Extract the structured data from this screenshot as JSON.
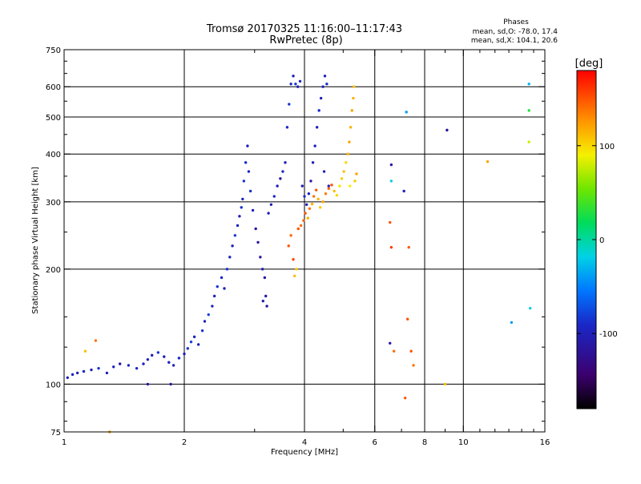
{
  "chart_data": {
    "type": "scatter",
    "title": "Tromsø 20170325 11:16:00–11:17:43",
    "subtitle": "RwPretec (8p)",
    "xlabel": "Frequency [MHz]",
    "ylabel": "Stationary phase Virtual Height [km]",
    "xscale": "log",
    "yscale": "log",
    "xlim": [
      1,
      16
    ],
    "ylim": [
      75,
      750
    ],
    "x_ticks": [
      {
        "value": 1,
        "label": "1"
      },
      {
        "value": 2,
        "label": "2"
      },
      {
        "value": 4,
        "label": "4"
      },
      {
        "value": 6,
        "label": "6"
      },
      {
        "value": 8,
        "label": "8"
      },
      {
        "value": 10,
        "label": "10"
      },
      {
        "value": 16,
        "label": "16"
      }
    ],
    "y_ticks": [
      {
        "value": 75,
        "label": "75"
      },
      {
        "value": 100,
        "label": "100"
      },
      {
        "value": 200,
        "label": "200"
      },
      {
        "value": 300,
        "label": "300"
      },
      {
        "value": 400,
        "label": "400"
      },
      {
        "value": 500,
        "label": "500"
      },
      {
        "value": 600,
        "label": "600"
      },
      {
        "value": 750,
        "label": "750"
      }
    ],
    "x_minor_ticks": [
      3,
      5,
      7,
      9,
      11,
      12,
      13,
      14,
      15
    ],
    "y_minor_ticks": [
      80,
      90,
      125,
      150,
      250,
      350,
      450,
      550,
      650,
      700
    ],
    "grid": true,
    "stats": {
      "heading": "Phases",
      "line1": "mean, sd,O: -78.0, 17.4",
      "line2": "mean, sd,X: 104.1, 20.6"
    },
    "colorbar": {
      "label": "[deg]",
      "range": [
        -180,
        180
      ],
      "ticks": [
        {
          "value": 100,
          "label": "100"
        },
        {
          "value": 0,
          "label": "0"
        },
        {
          "value": -100,
          "label": "-100"
        }
      ]
    },
    "points": [
      [
        1.02,
        104,
        -100
      ],
      [
        1.05,
        106,
        -95
      ],
      [
        1.08,
        107,
        -100
      ],
      [
        1.12,
        108,
        -90
      ],
      [
        1.17,
        109,
        -100
      ],
      [
        1.22,
        110,
        -85
      ],
      [
        1.28,
        107,
        -100
      ],
      [
        1.33,
        111,
        -95
      ],
      [
        1.38,
        113,
        -110
      ],
      [
        1.45,
        112,
        -100
      ],
      [
        1.52,
        110,
        -90
      ],
      [
        1.58,
        113,
        -100
      ],
      [
        1.62,
        116,
        -95
      ],
      [
        1.66,
        119,
        -100
      ],
      [
        1.72,
        121,
        -85
      ],
      [
        1.78,
        118,
        -100
      ],
      [
        1.83,
        114,
        -95
      ],
      [
        1.88,
        112,
        -100
      ],
      [
        1.94,
        117,
        -90
      ],
      [
        2.0,
        120,
        -100
      ],
      [
        2.04,
        124,
        -85
      ],
      [
        2.08,
        129,
        -80
      ],
      [
        2.12,
        133,
        -100
      ],
      [
        2.17,
        127,
        -95
      ],
      [
        2.22,
        138,
        -85
      ],
      [
        2.25,
        146,
        -100
      ],
      [
        2.3,
        152,
        -80
      ],
      [
        2.35,
        160,
        -95
      ],
      [
        2.38,
        170,
        -100
      ],
      [
        2.42,
        180,
        -85
      ],
      [
        2.48,
        190,
        -90
      ],
      [
        2.52,
        178,
        -100
      ],
      [
        2.56,
        200,
        -85
      ],
      [
        2.6,
        215,
        -95
      ],
      [
        2.64,
        230,
        -100
      ],
      [
        2.68,
        245,
        -85
      ],
      [
        2.72,
        260,
        -95
      ],
      [
        2.75,
        275,
        -100
      ],
      [
        2.78,
        290,
        -85
      ],
      [
        2.8,
        305,
        -95
      ],
      [
        2.82,
        340,
        -85
      ],
      [
        2.85,
        380,
        -90
      ],
      [
        2.88,
        420,
        -100
      ],
      [
        2.9,
        360,
        -95
      ],
      [
        2.93,
        320,
        -85
      ],
      [
        2.97,
        285,
        -100
      ],
      [
        3.02,
        255,
        -110
      ],
      [
        3.06,
        235,
        -115
      ],
      [
        3.1,
        215,
        -110
      ],
      [
        3.14,
        200,
        -105
      ],
      [
        3.18,
        190,
        -115
      ],
      [
        3.2,
        170,
        -110
      ],
      [
        3.22,
        160,
        -120
      ],
      [
        3.15,
        165,
        -110
      ],
      [
        3.25,
        280,
        -100
      ],
      [
        3.3,
        295,
        -105
      ],
      [
        3.36,
        310,
        -95
      ],
      [
        3.42,
        330,
        -100
      ],
      [
        3.48,
        345,
        -110
      ],
      [
        3.53,
        360,
        -95
      ],
      [
        3.58,
        380,
        -100
      ],
      [
        3.62,
        470,
        -90
      ],
      [
        3.66,
        540,
        -85
      ],
      [
        3.7,
        610,
        -95
      ],
      [
        3.75,
        640,
        -100
      ],
      [
        3.8,
        610,
        -85
      ],
      [
        3.85,
        600,
        -100
      ],
      [
        3.9,
        620,
        -95
      ],
      [
        3.95,
        330,
        -100
      ],
      [
        4.0,
        310,
        -90
      ],
      [
        4.05,
        295,
        -100
      ],
      [
        4.1,
        315,
        -95
      ],
      [
        4.15,
        340,
        -110
      ],
      [
        4.2,
        380,
        -100
      ],
      [
        4.25,
        420,
        -95
      ],
      [
        4.3,
        470,
        -100
      ],
      [
        4.35,
        520,
        -90
      ],
      [
        4.4,
        560,
        -100
      ],
      [
        4.45,
        600,
        -95
      ],
      [
        4.5,
        640,
        -100
      ],
      [
        4.55,
        610,
        -90
      ],
      [
        4.6,
        330,
        -100
      ],
      [
        4.48,
        360,
        -95
      ],
      [
        3.65,
        230,
        150
      ],
      [
        3.7,
        245,
        145
      ],
      [
        3.75,
        212,
        155
      ],
      [
        3.78,
        192,
        110
      ],
      [
        3.82,
        200,
        105
      ],
      [
        3.86,
        255,
        150
      ],
      [
        3.92,
        260,
        140
      ],
      [
        3.98,
        268,
        145
      ],
      [
        4.02,
        280,
        150
      ],
      [
        4.08,
        272,
        115
      ],
      [
        4.12,
        288,
        140
      ],
      [
        4.18,
        296,
        115
      ],
      [
        4.22,
        310,
        140
      ],
      [
        4.28,
        322,
        150
      ],
      [
        4.33,
        305,
        115
      ],
      [
        4.38,
        290,
        105
      ],
      [
        4.45,
        300,
        120
      ],
      [
        4.52,
        315,
        135
      ],
      [
        4.6,
        325,
        145
      ],
      [
        4.68,
        332,
        150
      ],
      [
        4.75,
        320,
        110
      ],
      [
        4.82,
        312,
        100
      ],
      [
        4.9,
        330,
        95
      ],
      [
        4.96,
        345,
        105
      ],
      [
        5.02,
        360,
        110
      ],
      [
        5.08,
        380,
        100
      ],
      [
        5.14,
        400,
        115
      ],
      [
        5.18,
        430,
        120
      ],
      [
        5.22,
        470,
        115
      ],
      [
        5.26,
        520,
        120
      ],
      [
        5.3,
        560,
        115
      ],
      [
        5.32,
        600,
        110
      ],
      [
        5.2,
        330,
        90
      ],
      [
        5.35,
        340,
        105
      ],
      [
        5.4,
        355,
        120
      ],
      [
        6.6,
        375,
        -110
      ],
      [
        6.6,
        340,
        -20
      ],
      [
        6.55,
        265,
        150
      ],
      [
        6.6,
        228,
        160
      ],
      [
        6.55,
        128,
        -110
      ],
      [
        6.7,
        122,
        140
      ],
      [
        7.1,
        320,
        -100
      ],
      [
        7.2,
        515,
        -40
      ],
      [
        7.3,
        228,
        150
      ],
      [
        7.25,
        148,
        150
      ],
      [
        7.4,
        122,
        150
      ],
      [
        7.5,
        112,
        140
      ],
      [
        7.15,
        92,
        150
      ],
      [
        9.1,
        462,
        -120
      ],
      [
        9.0,
        100,
        110
      ],
      [
        11.5,
        382,
        120
      ],
      [
        13.2,
        145,
        -40
      ],
      [
        14.6,
        610,
        -30
      ],
      [
        14.6,
        520,
        30
      ],
      [
        14.6,
        430,
        80
      ],
      [
        14.7,
        158,
        -20
      ],
      [
        1.13,
        122,
        110
      ],
      [
        1.2,
        130,
        140
      ],
      [
        1.3,
        75,
        120
      ],
      [
        1.62,
        100,
        -120
      ],
      [
        1.85,
        100,
        -120
      ]
    ]
  }
}
